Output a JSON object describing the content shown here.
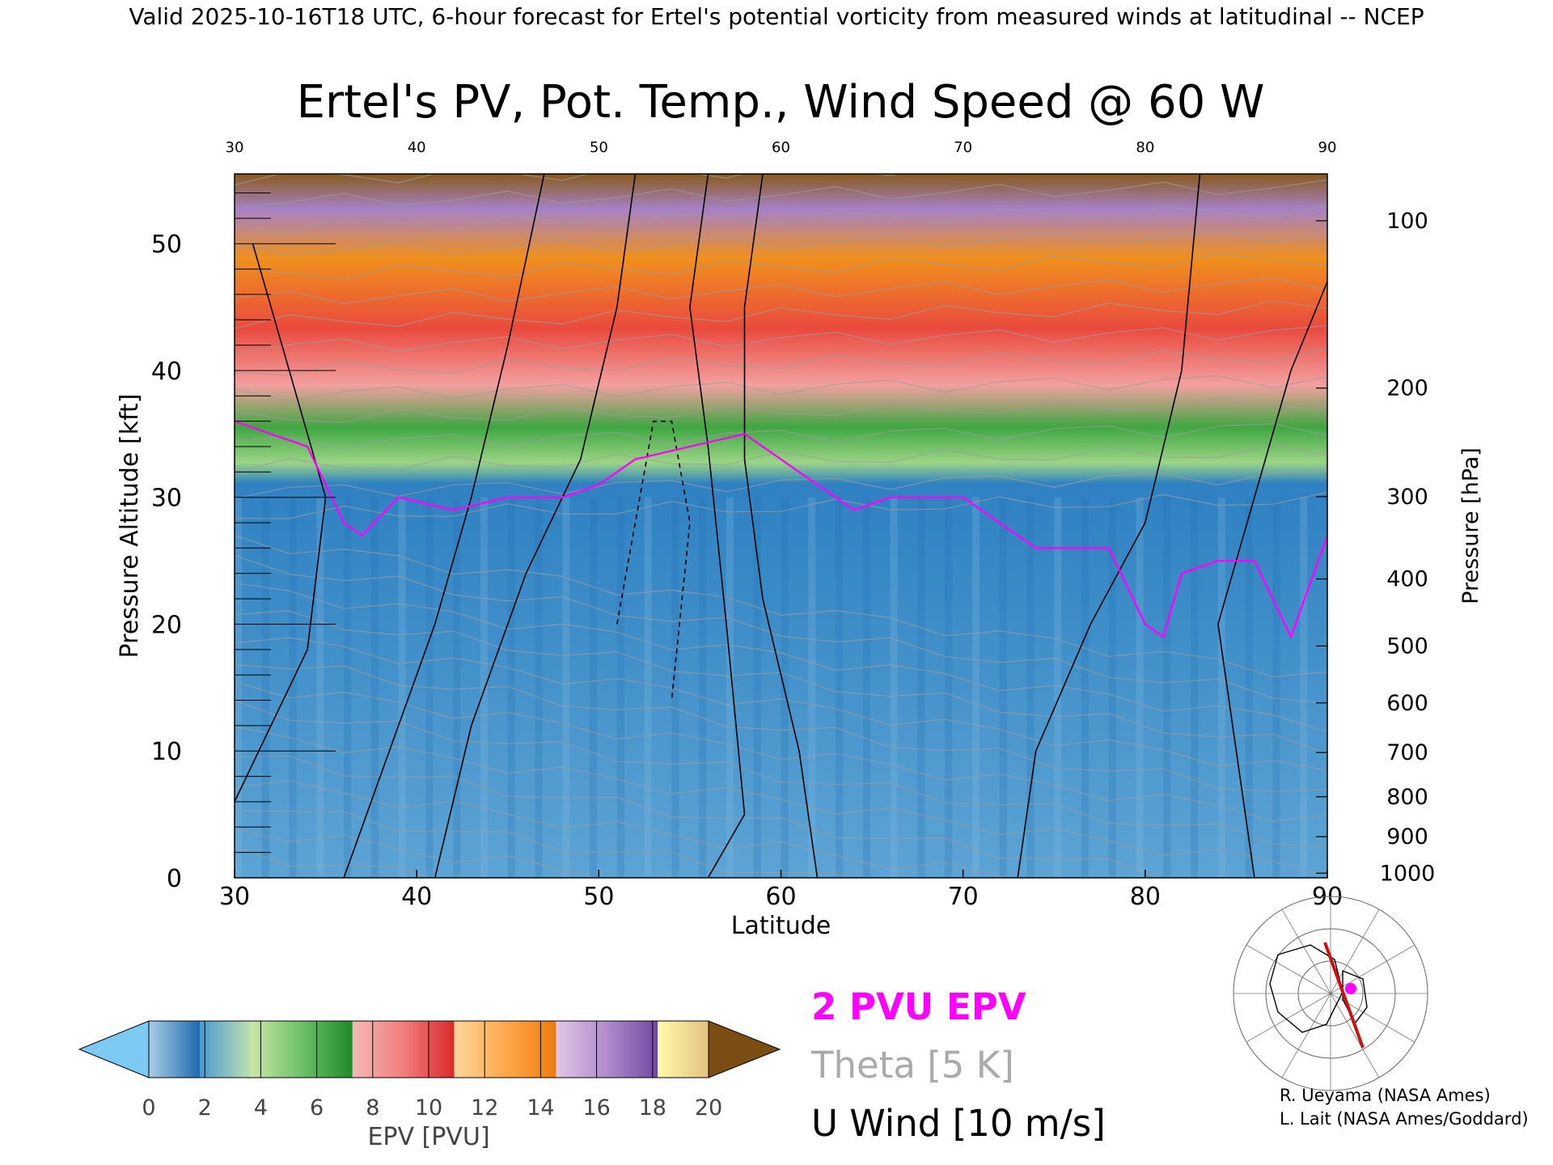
{
  "header": {
    "valid_line": "Valid 2025-10-16T18 UTC, 6-hour forecast for Ertel's potential vorticity from measured winds at latitudinal -- NCEP"
  },
  "chart_data": {
    "type": "heatmap",
    "title": "Ertel's PV, Pot. Temp., Wind Speed @ 60 W",
    "xlabel": "Latitude",
    "ylabel_left": "Pressure Altitude [kft]",
    "ylabel_right": "Pressure [hPa]",
    "xlim": [
      30,
      90
    ],
    "ylim": [
      0,
      55.5
    ],
    "x_ticks": [
      30,
      40,
      50,
      60,
      70,
      80,
      90
    ],
    "x_tick_labels": [
      "30",
      "40",
      "50",
      "60",
      "70",
      "80",
      "90"
    ],
    "top_x_tick_labels": [
      "30",
      "40",
      "50",
      "60",
      "70",
      "80",
      "90"
    ],
    "y_ticks": [
      0,
      10,
      20,
      30,
      40,
      50
    ],
    "y_tick_labels": [
      "0",
      "10",
      "20",
      "30",
      "40",
      "50"
    ],
    "pressure_ticks": [
      {
        "hPa": 100,
        "label": "100"
      },
      {
        "hPa": 200,
        "label": "200"
      },
      {
        "hPa": 300,
        "label": "300"
      },
      {
        "hPa": 400,
        "label": "400"
      },
      {
        "hPa": 500,
        "label": "500"
      },
      {
        "hPa": 600,
        "label": "600"
      },
      {
        "hPa": 700,
        "label": "700"
      },
      {
        "hPa": 800,
        "label": "800"
      },
      {
        "hPa": 900,
        "label": "900"
      },
      {
        "hPa": 1000,
        "label": "1000"
      }
    ],
    "tropopause_2pvu_kft": {
      "lat": [
        30,
        32,
        34,
        36,
        37,
        39,
        42,
        45,
        48,
        50,
        52,
        55,
        58,
        60,
        62,
        64,
        66,
        68,
        70,
        72,
        74,
        76,
        78,
        80,
        81,
        82,
        84,
        86,
        88,
        90
      ],
      "alt": [
        36,
        35,
        34,
        28,
        27,
        30,
        29,
        30,
        30,
        31,
        33,
        34,
        35,
        33,
        31,
        29,
        30,
        30,
        30,
        28,
        26,
        26,
        26,
        20,
        19,
        24,
        25,
        25,
        19,
        27
      ]
    },
    "colorbar": {
      "label": "EPV [PVU]",
      "tick_labels": [
        "0",
        "2",
        "4",
        "6",
        "8",
        "10",
        "12",
        "14",
        "16",
        "18",
        "20"
      ],
      "colors": [
        [
          "#a9cde4",
          "#1e6ab0"
        ],
        [
          "#4b98cf",
          "#bfe0b0"
        ],
        [
          "#cce7a6",
          "#6cc06a"
        ],
        [
          "#6cc06a",
          "#1e8b2a"
        ],
        [
          "#f5b9b5",
          "#f27d7d"
        ],
        [
          "#f27d7d",
          "#d92a2a"
        ],
        [
          "#ffd79a",
          "#ffa84c"
        ],
        [
          "#ffa84c",
          "#ec7b0e"
        ],
        [
          "#e2c6e6",
          "#b08ccc"
        ],
        [
          "#b08ccc",
          "#6e48a0"
        ],
        [
          "#fffaa8",
          "#e4c080"
        ]
      ],
      "under_color": "#7cc9f3",
      "over_color": "#7a4d12"
    },
    "legend": {
      "epv_label": "2 PVU EPV",
      "epv_color": "#ff00ff",
      "theta_label": "Theta [5 K]",
      "theta_color": "#aaaaaa",
      "uwind_label": "U Wind [10 m/s]",
      "uwind_color": "#000000"
    }
  },
  "credits": {
    "line1": "R. Ueyama (NASA Ames)",
    "line2": "L. Lait (NASA Ames/Goddard)"
  }
}
